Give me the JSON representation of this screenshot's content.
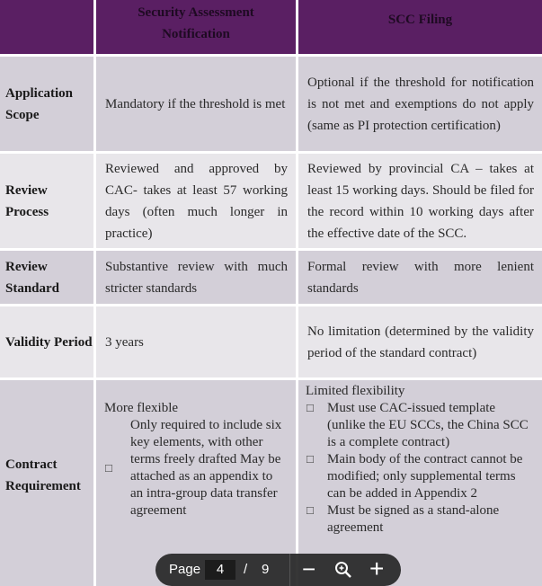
{
  "table": {
    "headers": [
      "",
      "Security Assessment Notification",
      "SCC Filing"
    ],
    "rows": [
      {
        "label": "Application Scope",
        "sa": "Mandatory if the threshold is met",
        "scc": "Optional if the threshold for notification is not met and exemptions do not apply (same as PI protection certification)"
      },
      {
        "label": "Review Process",
        "sa": "Reviewed and approved by CAC- takes at least 57 working days (often much longer in practice)",
        "scc": "Reviewed by provincial CA – takes at least 15 working days. Should be filed for the record within 10 working days after the effective date of the SCC."
      },
      {
        "label": "Review Standard",
        "sa": "Substantive review with much stricter standards",
        "scc": "Formal review with more lenient standards"
      },
      {
        "label": "Validity Period",
        "sa": "3 years",
        "scc": "No limitation (determined by the validity period of the standard contract)"
      },
      {
        "label": "Contract Requirement",
        "sa_intro": "More flexible",
        "sa_bullet": "Only required to include six key elements, with other terms freely drafted May be attached as an appendix to an intra-group data transfer agreement",
        "scc_intro": "Limited flexibility",
        "scc_bullets": [
          "Must use CAC-issued template (unlike the EU SCCs, the China SCC is a complete contract)",
          "Main body of the contract cannot be modified; only supplemental terms can be added in Appendix 2",
          "Must be signed as a stand-alone agreement"
        ]
      }
    ],
    "bullet_glyph": "☐",
    "colors": {
      "header": "#5a1f63",
      "row_dark": "#d3cfd8",
      "row_light": "#e8e6ea"
    }
  },
  "toolbar": {
    "page_label": "Page",
    "current_page": "4",
    "separator": "/",
    "total_pages": "9",
    "zoom_out": "−",
    "zoom_in": "+"
  }
}
